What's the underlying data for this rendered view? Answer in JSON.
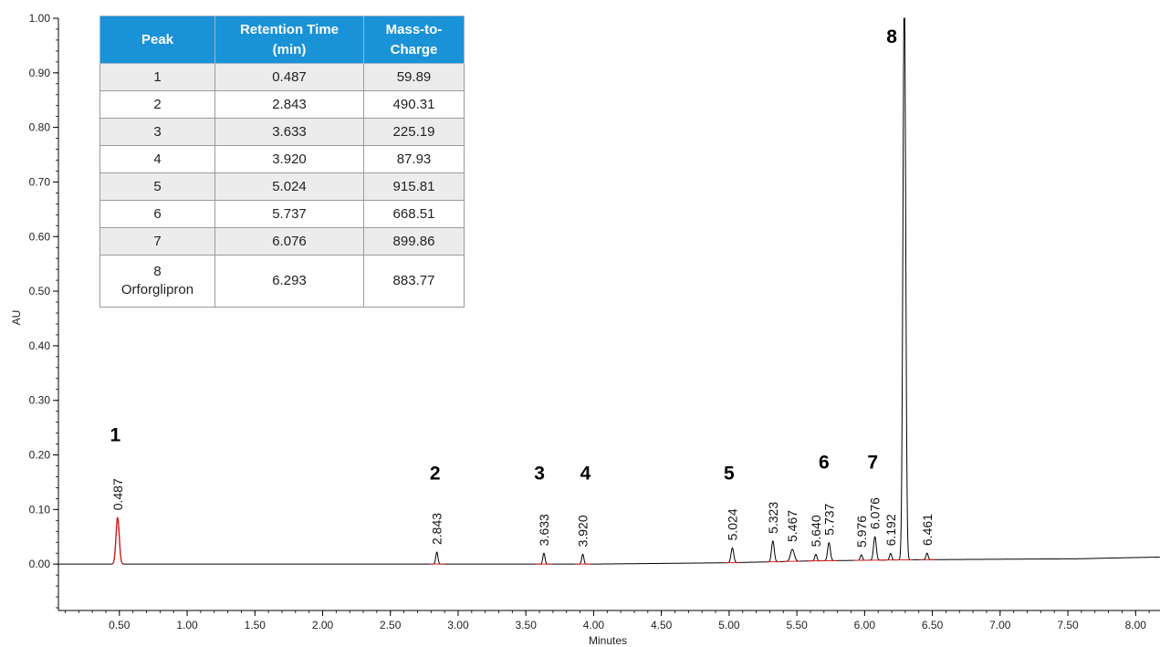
{
  "chart_data": {
    "type": "line",
    "title": "",
    "xlabel": "Minutes",
    "ylabel": "AU",
    "xlim": [
      0.05,
      8.18
    ],
    "ylim": [
      -0.085,
      1.0
    ],
    "x_ticks": [
      {
        "v": 0.5,
        "label": "0.50"
      },
      {
        "v": 1.0,
        "label": "1.00"
      },
      {
        "v": 1.5,
        "label": "1.50"
      },
      {
        "v": 2.0,
        "label": "2.00"
      },
      {
        "v": 2.5,
        "label": "2.50"
      },
      {
        "v": 3.0,
        "label": "3.00"
      },
      {
        "v": 3.5,
        "label": "3.50"
      },
      {
        "v": 4.0,
        "label": "4.00"
      },
      {
        "v": 4.5,
        "label": "4.50"
      },
      {
        "v": 5.0,
        "label": "5.00"
      },
      {
        "v": 5.5,
        "label": "5.50"
      },
      {
        "v": 6.0,
        "label": "6.00"
      },
      {
        "v": 6.5,
        "label": "6.50"
      },
      {
        "v": 7.0,
        "label": "7.00"
      },
      {
        "v": 7.5,
        "label": "7.50"
      },
      {
        "v": 8.0,
        "label": "8.00"
      }
    ],
    "y_ticks": [
      {
        "v": 0.0,
        "label": "0.00"
      },
      {
        "v": 0.1,
        "label": "0.10"
      },
      {
        "v": 0.2,
        "label": "0.20"
      },
      {
        "v": 0.3,
        "label": "0.30"
      },
      {
        "v": 0.4,
        "label": "0.40"
      },
      {
        "v": 0.5,
        "label": "0.50"
      },
      {
        "v": 0.6,
        "label": "0.60"
      },
      {
        "v": 0.7,
        "label": "0.70"
      },
      {
        "v": 0.8,
        "label": "0.80"
      },
      {
        "v": 0.9,
        "label": "0.90"
      },
      {
        "v": 1.0,
        "label": "1.00"
      }
    ],
    "peaks": [
      {
        "rt": 0.487,
        "label": "0.487",
        "height": 0.085,
        "width": 0.012,
        "color": "#d42020"
      },
      {
        "rt": 2.843,
        "label": "2.843",
        "height": 0.022,
        "width": 0.008,
        "color": "#000000"
      },
      {
        "rt": 3.633,
        "label": "3.633",
        "height": 0.02,
        "width": 0.008,
        "color": "#000000"
      },
      {
        "rt": 3.92,
        "label": "3.920",
        "height": 0.018,
        "width": 0.008,
        "color": "#000000"
      },
      {
        "rt": 5.024,
        "label": "5.024",
        "height": 0.027,
        "width": 0.01,
        "color": "#000000"
      },
      {
        "rt": 5.323,
        "label": "5.323",
        "height": 0.038,
        "width": 0.01,
        "color": "#000000"
      },
      {
        "rt": 5.467,
        "label": "5.467",
        "height": 0.022,
        "width": 0.014,
        "color": "#000000"
      },
      {
        "rt": 5.64,
        "label": "5.640",
        "height": 0.012,
        "width": 0.008,
        "color": "#000000"
      },
      {
        "rt": 5.737,
        "label": "5.737",
        "height": 0.033,
        "width": 0.01,
        "color": "#000000"
      },
      {
        "rt": 5.976,
        "label": "5.976",
        "height": 0.01,
        "width": 0.008,
        "color": "#000000"
      },
      {
        "rt": 6.076,
        "label": "6.076",
        "height": 0.043,
        "width": 0.01,
        "color": "#000000"
      },
      {
        "rt": 6.192,
        "label": "6.192",
        "height": 0.012,
        "width": 0.008,
        "color": "#000000"
      },
      {
        "rt": 6.293,
        "label": "",
        "height": 1.05,
        "width": 0.01,
        "color": "#000000"
      },
      {
        "rt": 6.461,
        "label": "6.461",
        "height": 0.012,
        "width": 0.008,
        "color": "#000000"
      }
    ],
    "annotations": [
      {
        "text": "1",
        "x": 0.47,
        "y": 0.225
      },
      {
        "text": "2",
        "x": 2.83,
        "y": 0.155
      },
      {
        "text": "3",
        "x": 3.6,
        "y": 0.155
      },
      {
        "text": "4",
        "x": 3.94,
        "y": 0.155
      },
      {
        "text": "5",
        "x": 5.0,
        "y": 0.155
      },
      {
        "text": "6",
        "x": 5.7,
        "y": 0.175
      },
      {
        "text": "7",
        "x": 6.06,
        "y": 0.175
      },
      {
        "text": "8",
        "x": 6.2,
        "y": 0.955
      }
    ]
  },
  "peak_table": {
    "headers": {
      "peak": "Peak",
      "rt_line1": "Retention Time",
      "rt_line2": "(min)",
      "mz_line1": "Mass-to-",
      "mz_line2": "Charge"
    },
    "rows": [
      {
        "peak": "1",
        "rt": "0.487",
        "mz": "59.89"
      },
      {
        "peak": "2",
        "rt": "2.843",
        "mz": "490.31"
      },
      {
        "peak": "3",
        "rt": "3.633",
        "mz": "225.19"
      },
      {
        "peak": "4",
        "rt": "3.920",
        "mz": "87.93"
      },
      {
        "peak": "5",
        "rt": "5.024",
        "mz": "915.81"
      },
      {
        "peak": "6",
        "rt": "5.737",
        "mz": "668.51"
      },
      {
        "peak": "7",
        "rt": "6.076",
        "mz": "899.86"
      },
      {
        "peak": "8",
        "name": "Orforglipron",
        "rt": "6.293",
        "mz": "883.77"
      }
    ]
  },
  "colors": {
    "header_bg": "#1a92d8",
    "trace": "#000000",
    "integration": "#d42020"
  }
}
